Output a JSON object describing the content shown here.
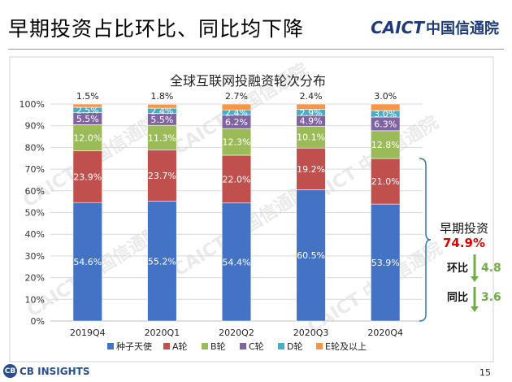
{
  "slide": {
    "title": "早期投资占比环比、同比均下降",
    "logo_latin": "CAICT",
    "logo_cn": "中国信通院",
    "footer_logo_mark": "CB",
    "footer_logo_text": "CB INSIGHTS",
    "page_number": "15"
  },
  "chart_data": {
    "type": "bar",
    "stacked": true,
    "title": "全球互联网投融资轮次分布",
    "xlabel": "",
    "ylabel": "",
    "ylim": [
      0,
      100
    ],
    "y_ticks": [
      "0%",
      "10%",
      "20%",
      "30%",
      "40%",
      "50%",
      "60%",
      "70%",
      "80%",
      "90%",
      "100%"
    ],
    "legend_position": "bottom",
    "categories": [
      "2019Q4",
      "2020Q1",
      "2020Q2",
      "2020Q3",
      "2020Q4"
    ],
    "series": [
      {
        "name": "种子天使",
        "color": "#4472c4",
        "values": [
          54.6,
          55.2,
          54.4,
          60.5,
          53.9
        ],
        "labels": [
          "54.6%",
          "55.2%",
          "54.4%",
          "60.5%",
          "53.9%"
        ]
      },
      {
        "name": "A轮",
        "color": "#c0504d",
        "values": [
          23.9,
          23.7,
          22.0,
          19.2,
          21.0
        ],
        "labels": [
          "23.9%",
          "23.7%",
          "22.0%",
          "19.2%",
          "21.0%"
        ]
      },
      {
        "name": "B轮",
        "color": "#9bbb59",
        "values": [
          12.0,
          11.3,
          12.3,
          10.1,
          12.8
        ],
        "labels": [
          "12.0%",
          "11.3%",
          "12.3%",
          "10.1%",
          "12.8%"
        ]
      },
      {
        "name": "C轮",
        "color": "#8064a2",
        "values": [
          5.5,
          5.5,
          6.2,
          4.9,
          6.3
        ],
        "labels": [
          "5.5%",
          "5.5%",
          "6.2%",
          "4.9%",
          "6.3%"
        ]
      },
      {
        "name": "D轮",
        "color": "#4bacc6",
        "values": [
          2.5,
          2.4,
          2.4,
          2.9,
          3.0
        ],
        "labels": [
          "2.5%",
          "2.4%",
          "2.4%",
          "2.9%",
          "3.0%"
        ]
      },
      {
        "name": "E轮及以上",
        "color": "#f79646",
        "values": [
          1.5,
          1.8,
          2.7,
          2.4,
          3.0
        ],
        "labels": [
          "1.5%",
          "1.8%",
          "2.7%",
          "2.4%",
          "3.0%"
        ]
      }
    ],
    "annotation": {
      "label": "早期投资",
      "value": "74.9%",
      "value_color": "#e00000",
      "bracket_color": "#2e75b6",
      "qoq_label": "环比",
      "qoq_value": "4.8",
      "yoy_label": "同比",
      "yoy_value": "3.6",
      "delta_color": "#70ad47",
      "arrow_direction": "down"
    },
    "watermark": "CAICT 中国信通院"
  }
}
